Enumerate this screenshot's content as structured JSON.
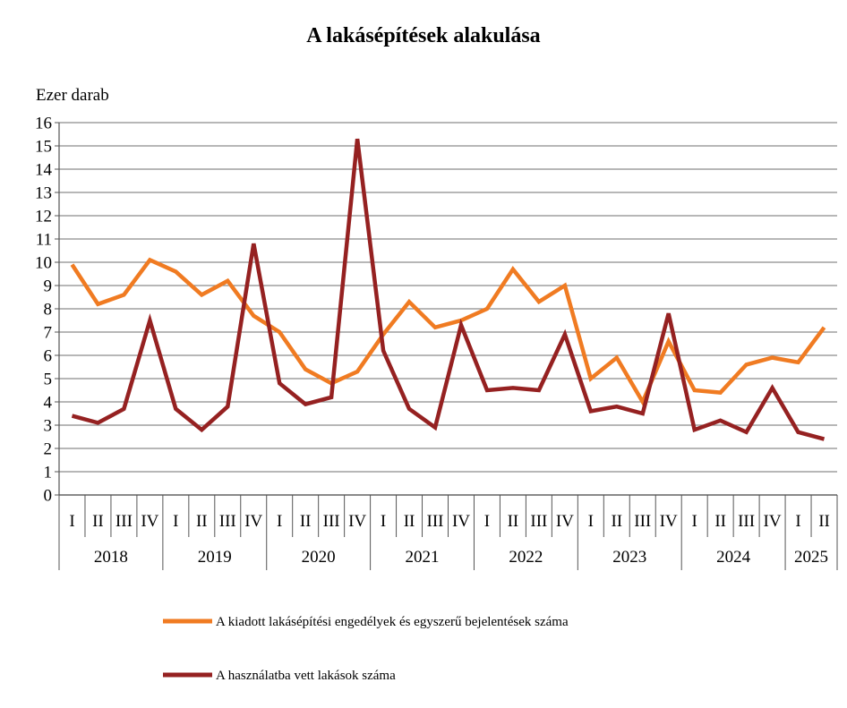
{
  "chart_data": {
    "type": "line",
    "title": "A lakásépítések alakulása",
    "ylabel": "Ezer darab",
    "ylim": [
      0,
      16
    ],
    "yticks": [
      "0",
      "1",
      "2",
      "3",
      "4",
      "5",
      "6",
      "7",
      "8",
      "9",
      "10",
      "11",
      "12",
      "13",
      "14",
      "15",
      "16"
    ],
    "grid": true,
    "legend_position": "bottom",
    "quarters": [
      "I",
      "II",
      "III",
      "IV",
      "I",
      "II",
      "III",
      "IV",
      "I",
      "II",
      "III",
      "IV",
      "I",
      "II",
      "III",
      "IV",
      "I",
      "II",
      "III",
      "IV",
      "I",
      "II",
      "III",
      "IV",
      "I",
      "II",
      "III",
      "IV",
      "I",
      "II"
    ],
    "years": [
      {
        "label": "2018",
        "quarters": 4
      },
      {
        "label": "2019",
        "quarters": 4
      },
      {
        "label": "2020",
        "quarters": 4
      },
      {
        "label": "2021",
        "quarters": 4
      },
      {
        "label": "2022",
        "quarters": 4
      },
      {
        "label": "2023",
        "quarters": 4
      },
      {
        "label": "2024",
        "quarters": 4
      },
      {
        "label": "2025",
        "quarters": 2
      }
    ],
    "series": [
      {
        "name": "A kiadott lakásépítési engedélyek és egyszerű bejelentések száma",
        "color": "#f07b22",
        "values": [
          9.9,
          8.2,
          8.6,
          10.1,
          9.6,
          8.6,
          9.2,
          7.7,
          7.0,
          5.4,
          4.8,
          5.3,
          6.9,
          8.3,
          7.2,
          7.5,
          8.0,
          9.7,
          8.3,
          9.0,
          5.0,
          5.9,
          4.0,
          6.6,
          4.5,
          4.4,
          5.6,
          5.9,
          5.7,
          7.2
        ]
      },
      {
        "name": "A használatba vett lakások száma",
        "color": "#952121",
        "values": [
          3.4,
          3.1,
          3.7,
          7.5,
          3.7,
          2.8,
          3.8,
          10.8,
          4.8,
          3.9,
          4.2,
          15.3,
          6.2,
          3.7,
          2.9,
          7.3,
          4.5,
          4.6,
          4.5,
          6.9,
          3.6,
          3.8,
          3.5,
          7.8,
          2.8,
          3.2,
          2.7,
          4.6,
          2.7,
          2.4
        ]
      }
    ]
  }
}
